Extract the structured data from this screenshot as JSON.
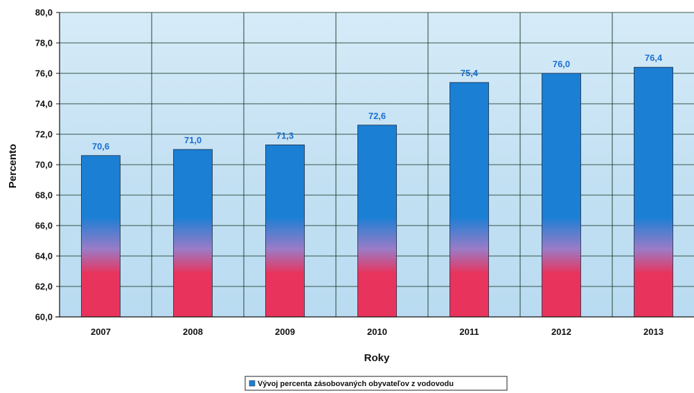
{
  "chart_data": {
    "type": "bar",
    "categories": [
      "2007",
      "2008",
      "2009",
      "2010",
      "2011",
      "2012",
      "2013"
    ],
    "series": [
      {
        "name": "Vývoj percenta zásobovaných obyvateľov z vodovodu",
        "values": [
          70.6,
          71.0,
          71.3,
          72.6,
          75.4,
          76.0,
          76.4
        ],
        "labels": [
          "70,6",
          "71,0",
          "71,3",
          "72,6",
          "75,4",
          "76,0",
          "76,4"
        ]
      }
    ],
    "ylim": [
      60,
      80
    ],
    "yticks": [
      "60,0",
      "62,0",
      "64,0",
      "66,0",
      "68,0",
      "70,0",
      "72,0",
      "74,0",
      "76,0",
      "78,0",
      "80,0"
    ],
    "ylabel": "Percento",
    "xlabel": "Roky",
    "grid": true,
    "legend_position": "bottom-center",
    "colors": {
      "plot_background": "#c9e3f4",
      "bar_top": "#1b7fd4",
      "bar_bottom": "#e8345c",
      "label": "#1b6fd1",
      "grid": "#1a3d2a"
    }
  }
}
